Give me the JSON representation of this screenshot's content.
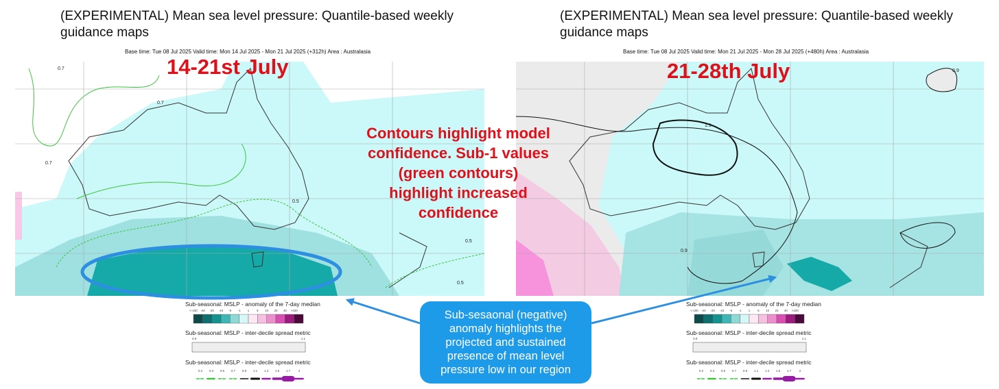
{
  "panels": [
    {
      "title": "(EXPERIMENTAL) Mean sea level pressure: Quantile-based weekly guidance maps",
      "subtitle": "Base time: Tue 08 Jul 2025 Valid time: Mon 14 Jul 2025 - Mon 21 Jul 2025 (+312h) Area : Australasia",
      "overlay": "14-21st July",
      "contour_labels": [
        "0.7",
        "0.7",
        "0.7",
        "0.5",
        "0.5",
        "0.5"
      ],
      "legends": [
        {
          "title": "Sub-seasonal: MSLP - anomaly of the 7-day median",
          "labels": [
            "<-100",
            "-40",
            "-20",
            "-10",
            "-5",
            "-1",
            "1",
            "5",
            "10",
            "20",
            "40",
            ">100"
          ]
        },
        {
          "title": "Sub-seasonal: MSLP - inter-decile spread metric",
          "labels": [
            "0.9",
            "1.1"
          ]
        },
        {
          "title": "Sub-seasonal: MSLP - inter-decile spread metric",
          "labels": [
            "0.2",
            "0.3",
            "0.5",
            "0.7",
            "0.9",
            "1.1",
            "1.3",
            "1.5",
            "1.7",
            "2"
          ]
        }
      ]
    },
    {
      "title": "(EXPERIMENTAL) Mean sea level pressure: Quantile-based weekly guidance maps",
      "subtitle": "Base time: Tue 08 Jul 2025 Valid time: Mon 21 Jul 2025 - Mon 28 Jul 2025 (+480h) Area : Australasia",
      "overlay": "21-28th July",
      "contour_labels": [
        "1.1",
        "0.9",
        "0.9"
      ],
      "legends": [
        {
          "title": "Sub-seasonal: MSLP - anomaly of the 7-day median",
          "labels": [
            "<-100",
            "-40",
            "-20",
            "-10",
            "-5",
            "-1",
            "1",
            "5",
            "10",
            "20",
            "40",
            ">100"
          ]
        },
        {
          "title": "Sub-seasonal: MSLP - inter-decile spread metric",
          "labels": [
            "0.9",
            "1.1"
          ]
        },
        {
          "title": "Sub-seasonal: MSLP - inter-decile spread metric",
          "labels": [
            "0.2",
            "0.3",
            "0.5",
            "0.7",
            "0.9",
            "1.1",
            "1.3",
            "1.5",
            "1.7",
            "2"
          ]
        }
      ]
    }
  ],
  "annotations": {
    "center": "Contours highlight model confidence. Sub-1 values (green contours) highlight increased confidence",
    "callout": "Sub-sesaonal (negative) anomaly highlights the projected and sustained presence of mean level pressure low in our region"
  }
}
